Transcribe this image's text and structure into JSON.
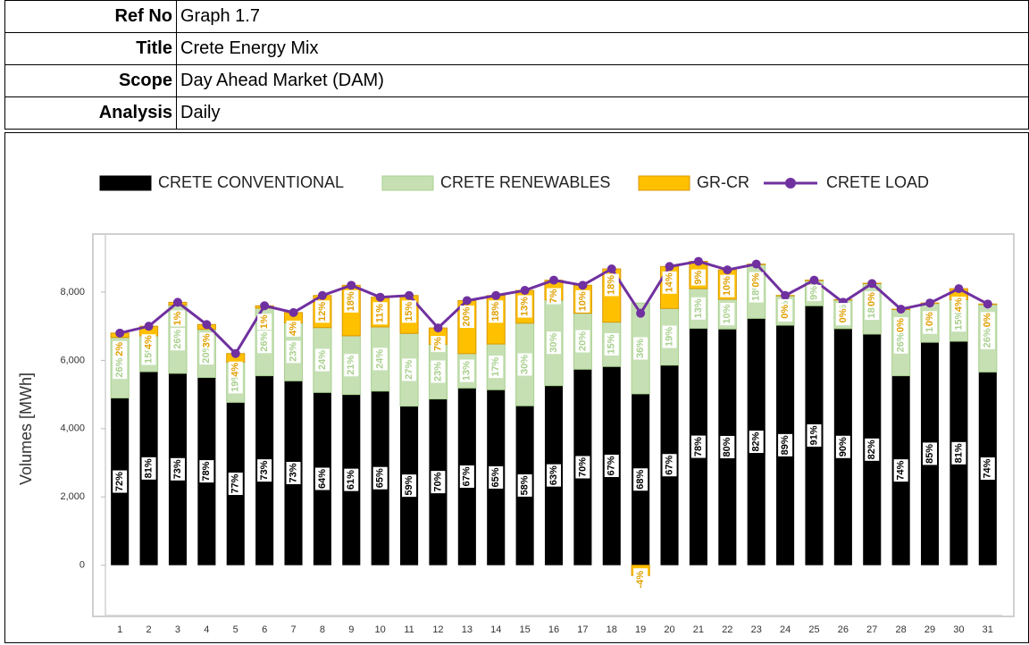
{
  "header": {
    "rows": [
      {
        "label": "Ref No",
        "value": "Graph 1.7"
      },
      {
        "label": "Title",
        "value": "Crete Energy Mix"
      },
      {
        "label": "Scope",
        "value": "Day Ahead Market (DAM)"
      },
      {
        "label": "Analysis",
        "value": "Daily"
      }
    ]
  },
  "chart_data": {
    "type": "stacked-bar-line",
    "y_label": "Volumes [MWh]",
    "categories": [
      "1",
      "2",
      "3",
      "4",
      "5",
      "6",
      "7",
      "8",
      "9",
      "10",
      "11",
      "12",
      "13",
      "14",
      "15",
      "16",
      "17",
      "18",
      "19",
      "20",
      "21",
      "22",
      "23",
      "24",
      "25",
      "26",
      "27",
      "28",
      "29",
      "30",
      "31"
    ],
    "series": [
      {
        "name": "CRETE CONVENTIONAL",
        "color": "#000000",
        "kind": "bar",
        "values": [
          4900,
          5670,
          5620,
          5500,
          4770,
          5550,
          5400,
          5060,
          5000,
          5100,
          4660,
          4870,
          5190,
          5140,
          4670,
          5260,
          5740,
          5820,
          5020,
          5860,
          6940,
          6920,
          7230,
          7030,
          7600,
          6930,
          6770,
          5550,
          6530,
          6560,
          5660
        ],
        "value_labels": [
          "72%",
          "81%",
          "73%",
          "78%",
          "77%",
          "73%",
          "73%",
          "64%",
          "61%",
          "65%",
          "59%",
          "70%",
          "67%",
          "65%",
          "58%",
          "63%",
          "70%",
          "67%",
          "68%",
          "67%",
          "78%",
          "80%",
          "82%",
          "89%",
          "91%",
          "90%",
          "82%",
          "74%",
          "85%",
          "81%",
          "74%"
        ]
      },
      {
        "name": "CRETE RENEWABLES",
        "color": "#c6e0b4",
        "kind": "bar",
        "values": [
          1770,
          1050,
          2000,
          1410,
          1180,
          1980,
          1700,
          1900,
          1720,
          1880,
          2130,
          1600,
          1010,
          1340,
          2420,
          2510,
          1640,
          1300,
          2660,
          1660,
          1160,
          870,
          1590,
          870,
          750,
          850,
          1490,
          1950,
          1150,
          1220,
          1990
        ],
        "value_labels": [
          "26%",
          "15%",
          "26%",
          "20%",
          "19%",
          "26%",
          "23%",
          "24%",
          "21%",
          "24%",
          "27%",
          "23%",
          "13%",
          "17%",
          "30%",
          "30%",
          "20%",
          "15%",
          "36%",
          "19%",
          "13%",
          "10%",
          "18%",
          "11%",
          "9%",
          "11%",
          "18%",
          "26%",
          "15%",
          "15%",
          "26%"
        ]
      },
      {
        "name": "GR-CR",
        "color": "#ffc000",
        "kind": "bar",
        "values": [
          130,
          280,
          80,
          140,
          250,
          70,
          300,
          940,
          1480,
          870,
          1110,
          480,
          1550,
          1420,
          960,
          580,
          820,
          1560,
          -300,
          1230,
          800,
          860,
          0,
          0,
          0,
          0,
          0,
          0,
          0,
          320,
          0
        ],
        "value_labels": [
          "2%",
          "4%",
          "1%",
          "3%",
          "4%",
          "1%",
          "4%",
          "12%",
          "18%",
          "11%",
          "15%",
          "7%",
          "20%",
          "18%",
          "13%",
          "7%",
          "10%",
          "18%",
          "-4%",
          "14%",
          "9%",
          "10%",
          "0%",
          "0%",
          null,
          "0%",
          "0%",
          "0%",
          "0%",
          "4%",
          "0%"
        ]
      },
      {
        "name": "CRETE LOAD",
        "color": "#7030a0",
        "kind": "line",
        "values": [
          6800,
          7000,
          7700,
          7050,
          6200,
          7600,
          7400,
          7900,
          8200,
          7850,
          7900,
          6950,
          7750,
          7900,
          8050,
          8350,
          8200,
          8680,
          7380,
          8750,
          8900,
          8650,
          8820,
          7900,
          8350,
          7700,
          8250,
          7500,
          7680,
          8100,
          7650
        ]
      }
    ],
    "ylim": [
      -1500,
      9700
    ],
    "yticks": [
      {
        "value": 0,
        "label": "0"
      },
      {
        "value": 2000,
        "label": "2,000"
      },
      {
        "value": 4000,
        "label": "4,000"
      },
      {
        "value": 6000,
        "label": "6,000"
      },
      {
        "value": 8000,
        "label": "8,000"
      }
    ],
    "legend": "top"
  }
}
